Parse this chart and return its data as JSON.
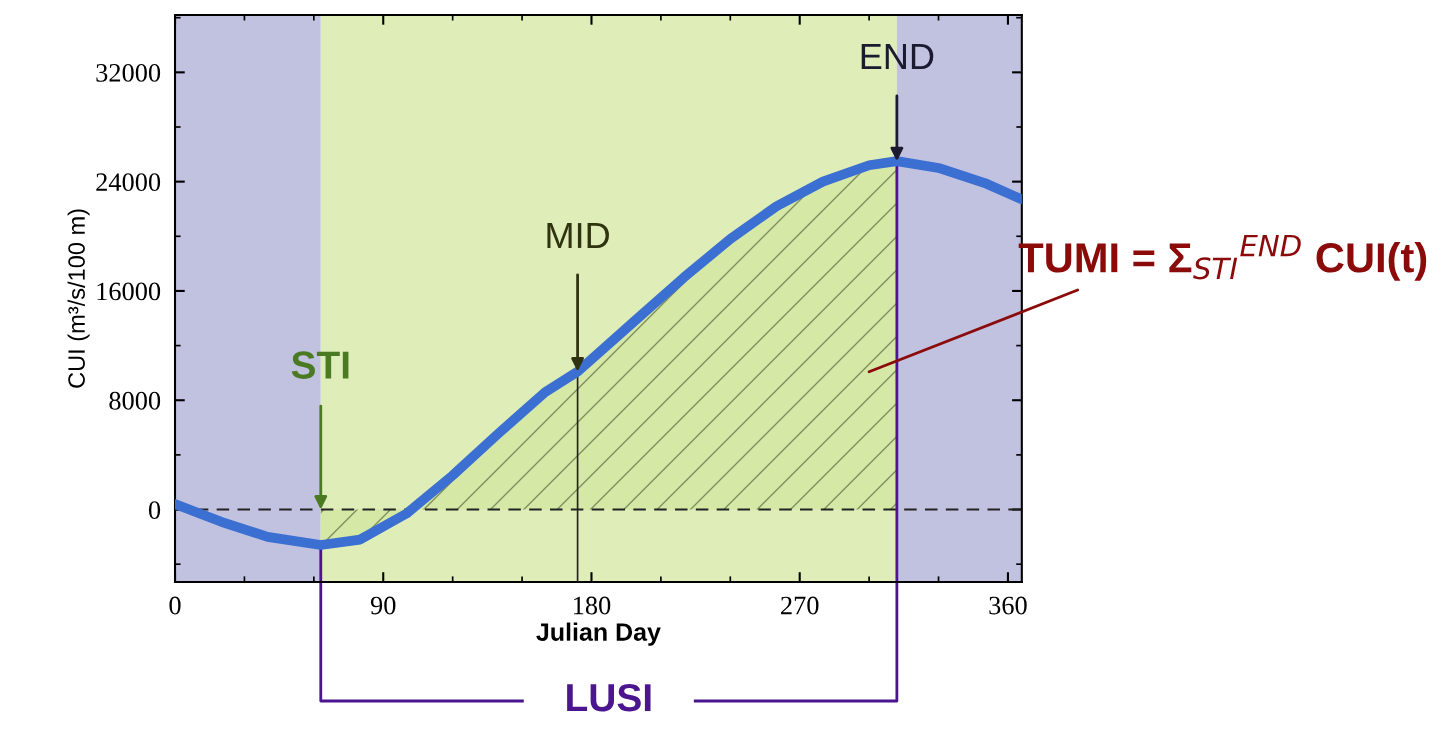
{
  "chart_data": {
    "type": "line",
    "xlabel": "Julian Day",
    "ylabel": "CUI (m³/s/100 m)",
    "xlim": [
      0,
      366
    ],
    "ylim": [
      -5300,
      36200
    ],
    "xticks": [
      0,
      90,
      180,
      270,
      360
    ],
    "yticks": [
      0,
      8000,
      16000,
      24000,
      32000
    ],
    "grid": false,
    "marker": "none",
    "line_style": "solid",
    "series": [
      {
        "color": "#3b6fd2",
        "x": [
          0,
          20,
          40,
          63,
          80,
          100,
          120,
          140,
          160,
          174,
          200,
          220,
          240,
          260,
          280,
          300,
          312,
          330,
          350,
          366
        ],
        "values": [
          400,
          -900,
          -2000,
          -2600,
          -2200,
          -300,
          2500,
          5600,
          8600,
          10100,
          14000,
          17000,
          19800,
          22200,
          24000,
          25200,
          25500,
          25000,
          23900,
          22700
        ]
      },
      {
        "type": "area",
        "color": "#7f8f5f",
        "x": [
          63,
          80,
          100,
          120,
          140,
          160,
          174,
          200,
          220,
          240,
          260,
          280,
          300,
          312
        ],
        "values": [
          -2600,
          -2200,
          -300,
          2500,
          5600,
          8600,
          10100,
          14000,
          17000,
          19800,
          22200,
          24000,
          25200,
          25500
        ]
      }
    ],
    "bands": [
      {
        "axis": "x",
        "from": 0,
        "to": 63,
        "color": "#c1c1e0"
      },
      {
        "axis": "x",
        "from": 63,
        "to": 312,
        "color": "#dfedb9"
      },
      {
        "axis": "x",
        "from": 312,
        "to": 366,
        "color": "#c1c1e0"
      }
    ],
    "ref_lines": [
      {
        "axis": "y",
        "value": 0,
        "line_style": "dashed",
        "color": "#222222"
      },
      {
        "axis": "x",
        "value": 174,
        "line_style": "solid",
        "color": "#222222"
      }
    ],
    "annotations": [
      {
        "text": "STI",
        "x": 63,
        "y": 0
      },
      {
        "text": "MID",
        "x": 174,
        "y": 10100
      },
      {
        "text": "END",
        "x": 312,
        "y": 25500
      },
      "TUMI = Σ$_{STI}$$^{END}$ CUI(t)",
      {
        "text": "LUSI",
        "x": 63,
        "y": -2600
      }
    ]
  }
}
